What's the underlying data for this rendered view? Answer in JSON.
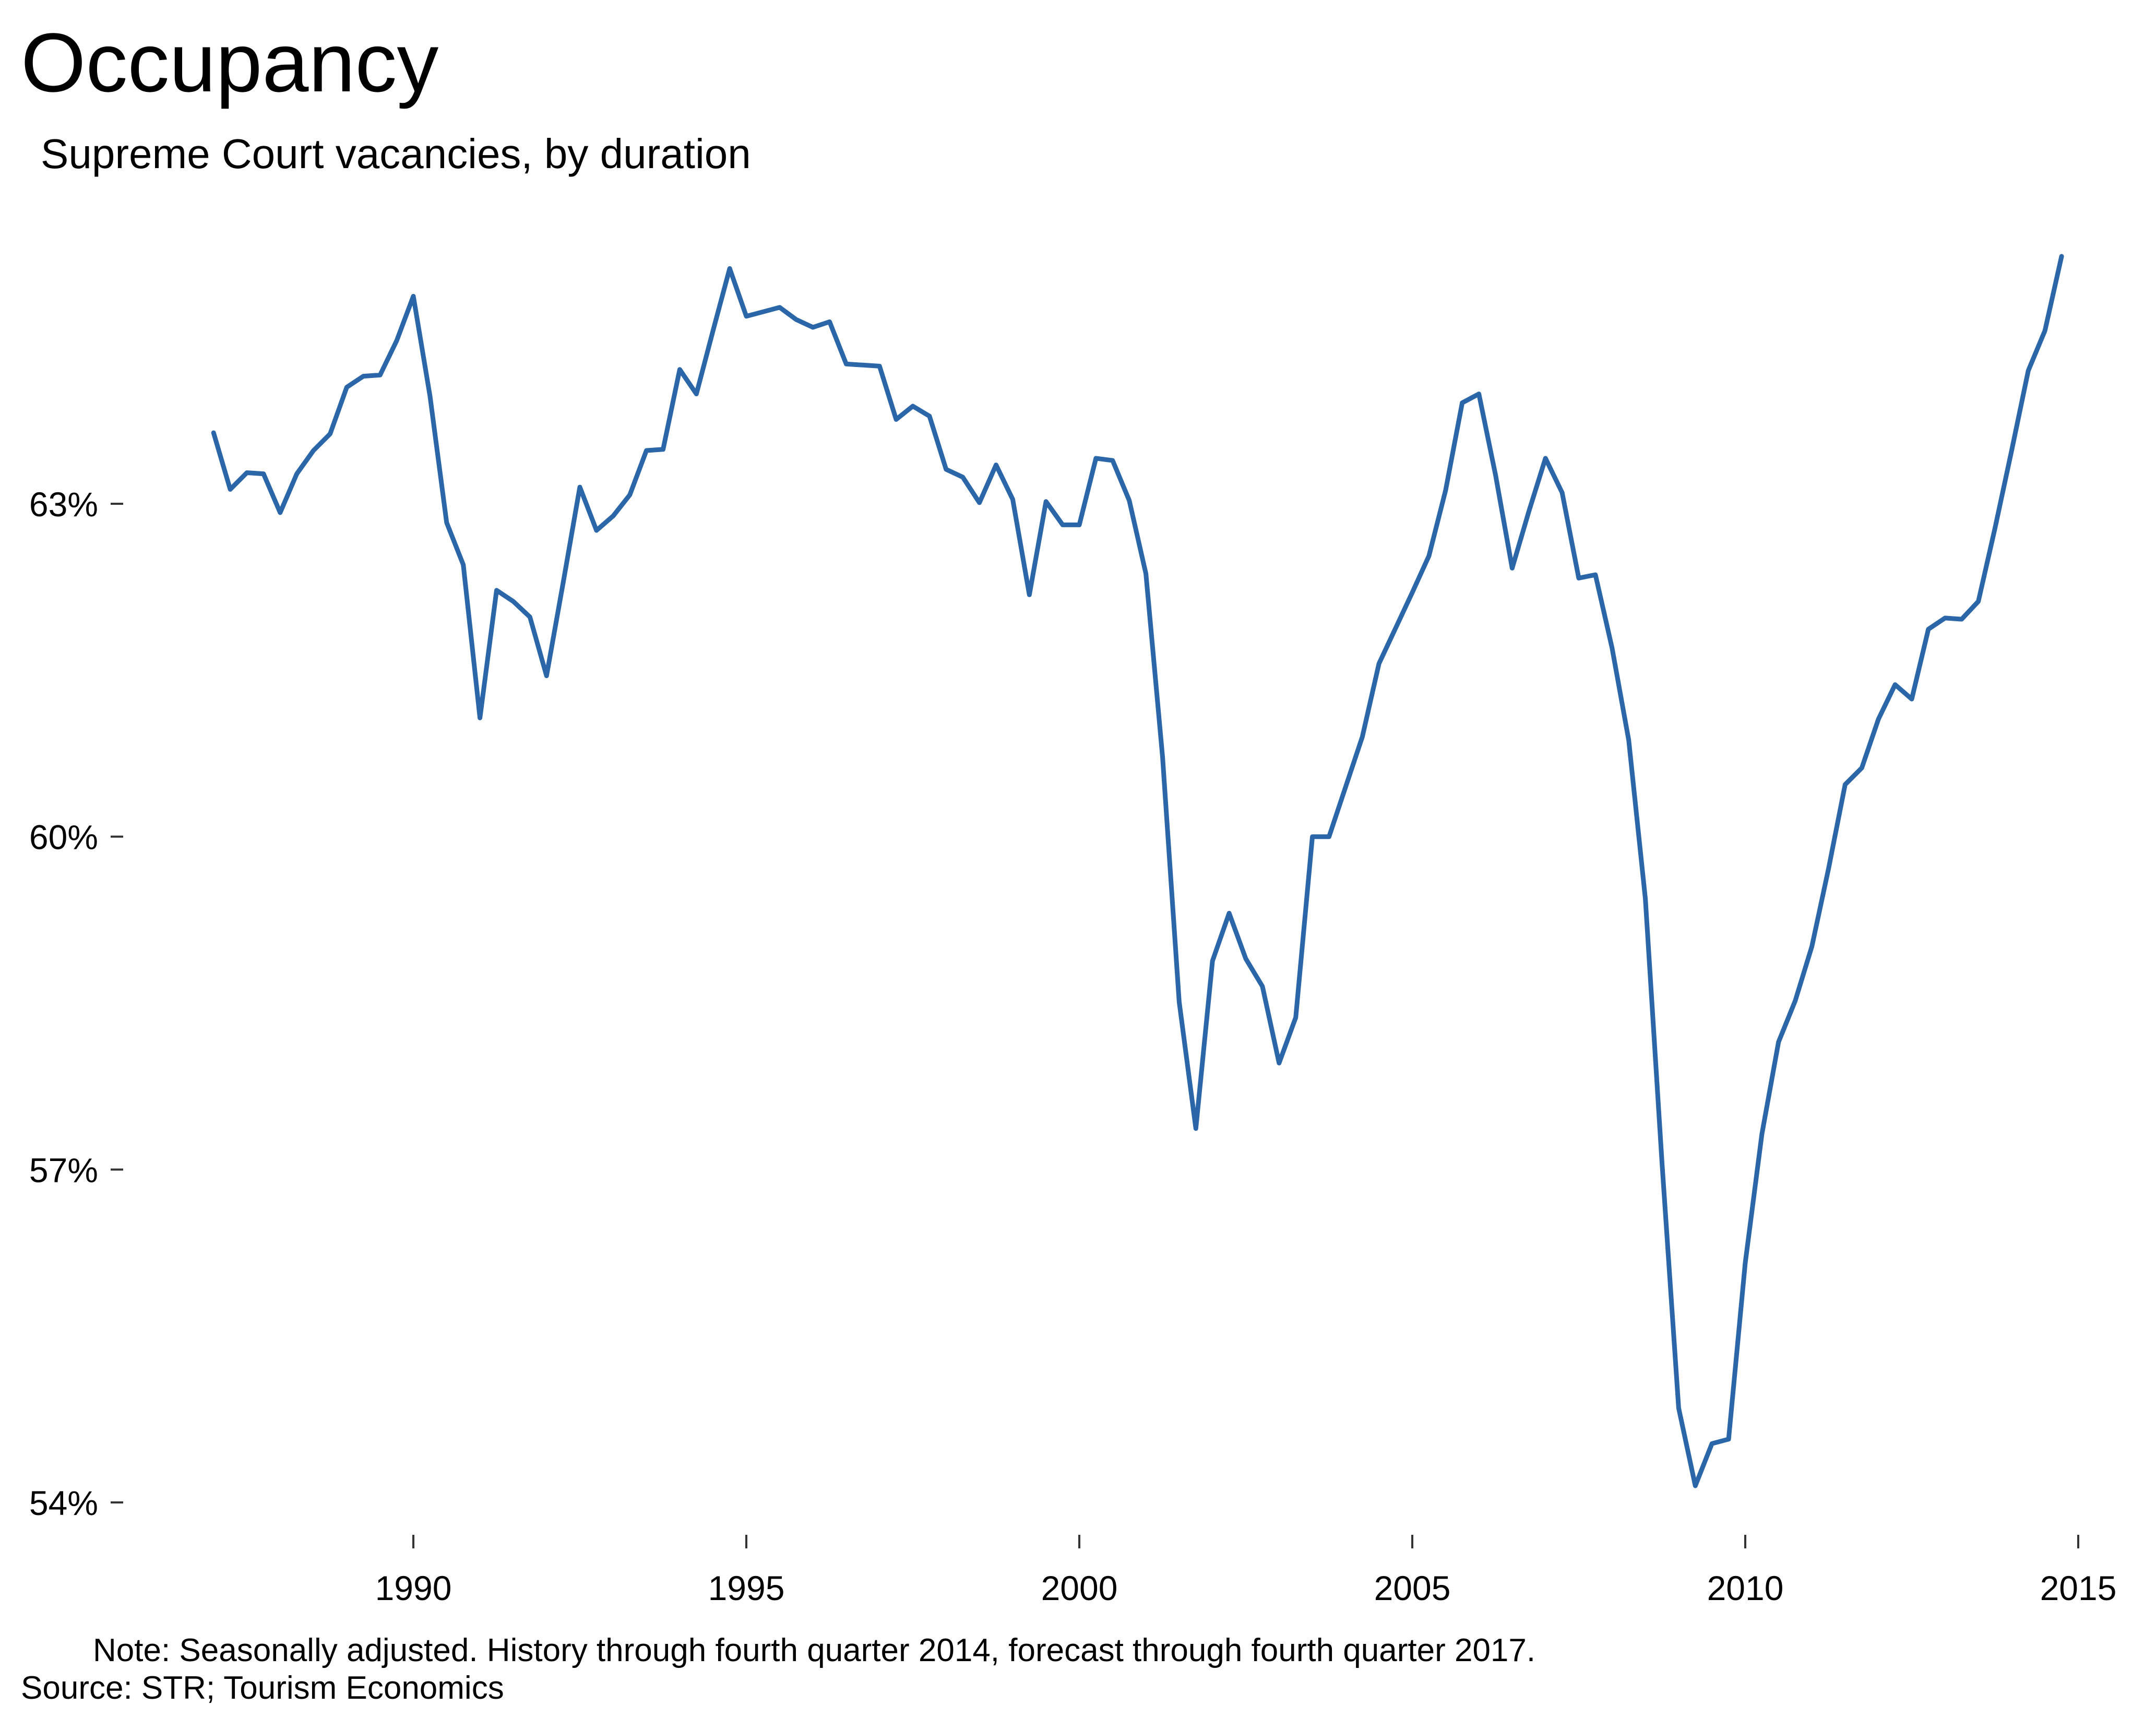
{
  "chart_data": {
    "type": "line",
    "title": "Occupancy",
    "subtitle": "Supreme Court vacancies, by duration",
    "xlabel": "",
    "ylabel": "",
    "xlim": [
      1985.4,
      2015.4
    ],
    "ylim": [
      53.5,
      65.5
    ],
    "x_ticks": [
      1990,
      1995,
      2000,
      2005,
      2010,
      2015
    ],
    "x_tick_labels": [
      "1990",
      "1995",
      "2000",
      "2005",
      "2010",
      "2015"
    ],
    "y_ticks": [
      54,
      57,
      60,
      63
    ],
    "y_tick_labels": [
      "54%",
      "57%",
      "60%",
      "63%"
    ],
    "grid": false,
    "legend": "none",
    "series": [
      {
        "color": "#2b67a8",
        "x": [
          1987.0,
          1987.25,
          1987.5,
          1987.75,
          1988.0,
          1988.25,
          1988.5,
          1988.75,
          1989.0,
          1989.25,
          1989.5,
          1989.75,
          1990.0,
          1990.25,
          1990.5,
          1990.75,
          1991.0,
          1991.25,
          1991.5,
          1991.75,
          1992.0,
          1992.25,
          1992.5,
          1992.75,
          1993.0,
          1993.25,
          1993.5,
          1993.75,
          1994.0,
          1994.25,
          1994.5,
          1994.75,
          1995.0,
          1995.25,
          1995.5,
          1995.75,
          1996.0,
          1996.25,
          1996.5,
          1996.75,
          1997.0,
          1997.25,
          1997.5,
          1997.75,
          1998.0,
          1998.25,
          1998.5,
          1998.75,
          1999.0,
          1999.25,
          1999.5,
          1999.75,
          2000.0,
          2000.25,
          2000.5,
          2000.75,
          2001.0,
          2001.25,
          2001.5,
          2001.75,
          2002.0,
          2002.25,
          2002.5,
          2002.75,
          2003.0,
          2003.25,
          2003.5,
          2003.75,
          2004.0,
          2004.25,
          2004.5,
          2004.75,
          2005.0,
          2005.25,
          2005.5,
          2005.75,
          2006.0,
          2006.25,
          2006.5,
          2006.75,
          2007.0,
          2007.25,
          2007.5,
          2007.75,
          2008.0,
          2008.25,
          2008.5,
          2008.75,
          2009.0,
          2009.25,
          2009.5,
          2009.75,
          2010.0,
          2010.25,
          2010.5,
          2010.75,
          2011.0,
          2011.25,
          2011.5,
          2011.75,
          2012.0,
          2012.25,
          2012.5,
          2012.75,
          2013.0,
          2013.25,
          2013.5,
          2013.75,
          2014.0,
          2014.25,
          2014.5,
          2014.75
        ],
        "y": [
          63.64,
          63.13,
          63.28,
          63.27,
          62.92,
          63.27,
          63.48,
          63.63,
          64.05,
          64.15,
          64.16,
          64.47,
          64.87,
          63.97,
          62.83,
          62.45,
          61.07,
          62.22,
          62.12,
          61.98,
          61.45,
          62.29,
          63.15,
          62.76,
          62.89,
          63.08,
          63.48,
          63.49,
          64.21,
          63.99,
          64.56,
          65.12,
          64.69,
          64.73,
          64.77,
          64.66,
          64.59,
          64.64,
          64.26,
          64.25,
          64.24,
          63.76,
          63.88,
          63.79,
          63.31,
          63.24,
          63.01,
          63.35,
          63.04,
          62.18,
          63.02,
          62.81,
          62.81,
          63.41,
          63.39,
          63.03,
          62.37,
          60.72,
          58.51,
          57.37,
          58.88,
          59.31,
          58.9,
          58.65,
          57.96,
          58.37,
          60.0,
          60.0,
          60.45,
          60.9,
          61.56,
          61.88,
          62.2,
          62.53,
          63.12,
          63.91,
          63.99,
          63.26,
          62.42,
          62.93,
          63.41,
          63.1,
          62.33,
          62.36,
          61.7,
          60.87,
          59.44,
          57.06,
          54.85,
          54.15,
          54.53,
          54.57,
          56.16,
          57.32,
          58.15,
          58.52,
          59.01,
          59.71,
          60.47,
          60.62,
          61.06,
          61.37,
          61.24,
          61.87,
          61.97,
          61.96,
          62.12,
          62.78,
          63.48,
          64.2,
          64.56,
          65.23
        ]
      }
    ]
  },
  "footer": {
    "note": "Note: Seasonally adjusted. History through fourth quarter 2014, forecast through fourth quarter 2017.",
    "source": "Source: STR; Tourism Economics"
  }
}
